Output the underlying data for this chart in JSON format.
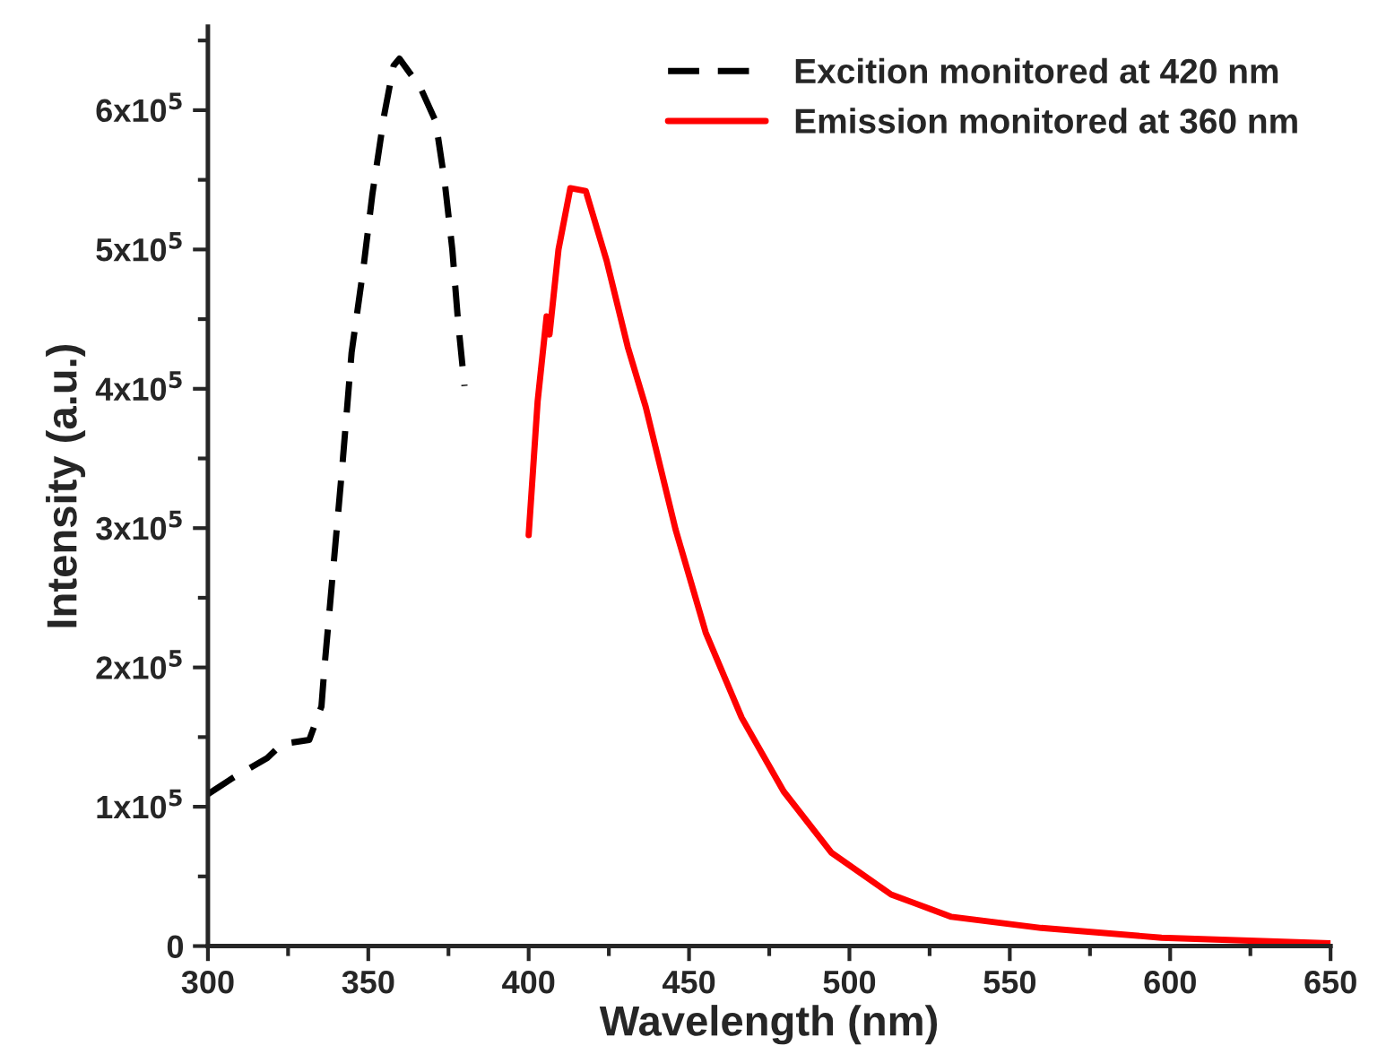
{
  "chart_data": {
    "type": "line",
    "xlabel": "Wavelength (nm)",
    "ylabel": "Intensity (a.u.)",
    "xlim": [
      300,
      650
    ],
    "xticks": [
      300,
      350,
      400,
      450,
      500,
      550,
      600,
      650
    ],
    "ylim": [
      0,
      660000
    ],
    "yticks": [
      {
        "value": 0,
        "label": "0"
      },
      {
        "value": 100000,
        "label": "1x10$^{5}$"
      },
      {
        "value": 200000,
        "label": "2x10$^{5}$"
      },
      {
        "value": 300000,
        "label": "3x10$^{5}$"
      },
      {
        "value": 400000,
        "label": "4x10$^{5}$"
      },
      {
        "value": 500000,
        "label": "5x10$^{5}$"
      },
      {
        "value": 600000,
        "label": "6x10$^{5}$"
      }
    ],
    "grid": false,
    "legend": "top right",
    "series": [
      {
        "name": "Excition monitored at 420 nm",
        "color": "#000000",
        "line_style": "dashed",
        "x": [
          300,
          308,
          318.5,
          323,
          331.6,
          335.4,
          336.3,
          339,
          342,
          344.8,
          348.5,
          351.3,
          355,
          357.9,
          359.7,
          366.3,
          371,
          373.8,
          376.2,
          378,
          380
        ],
        "values": [
          109000,
          121000,
          135000,
          145000,
          148000,
          172000,
          199000,
          269000,
          347000,
          426000,
          487000,
          540000,
          597000,
          632000,
          637000,
          616000,
          592000,
          549000,
          500000,
          448000,
          402000
        ]
      },
      {
        "name": "Emission monitored at 360 nm",
        "color": "#ff0000",
        "line_style": "solid",
        "x": [
          400,
          402.8,
          405.6,
          406.5,
          409.3,
          413,
          417.8,
          424.3,
          430.9,
          436.5,
          445.8,
          455.2,
          466.4,
          479.5,
          494.4,
          513,
          531.8,
          559.8,
          597.3,
          650
        ],
        "values": [
          295000,
          391000,
          452000,
          439000,
          500000,
          544000,
          542000,
          492000,
          430000,
          387000,
          299000,
          225000,
          164000,
          111000,
          67000,
          37000,
          21000,
          13000,
          6000,
          2000
        ]
      }
    ]
  }
}
